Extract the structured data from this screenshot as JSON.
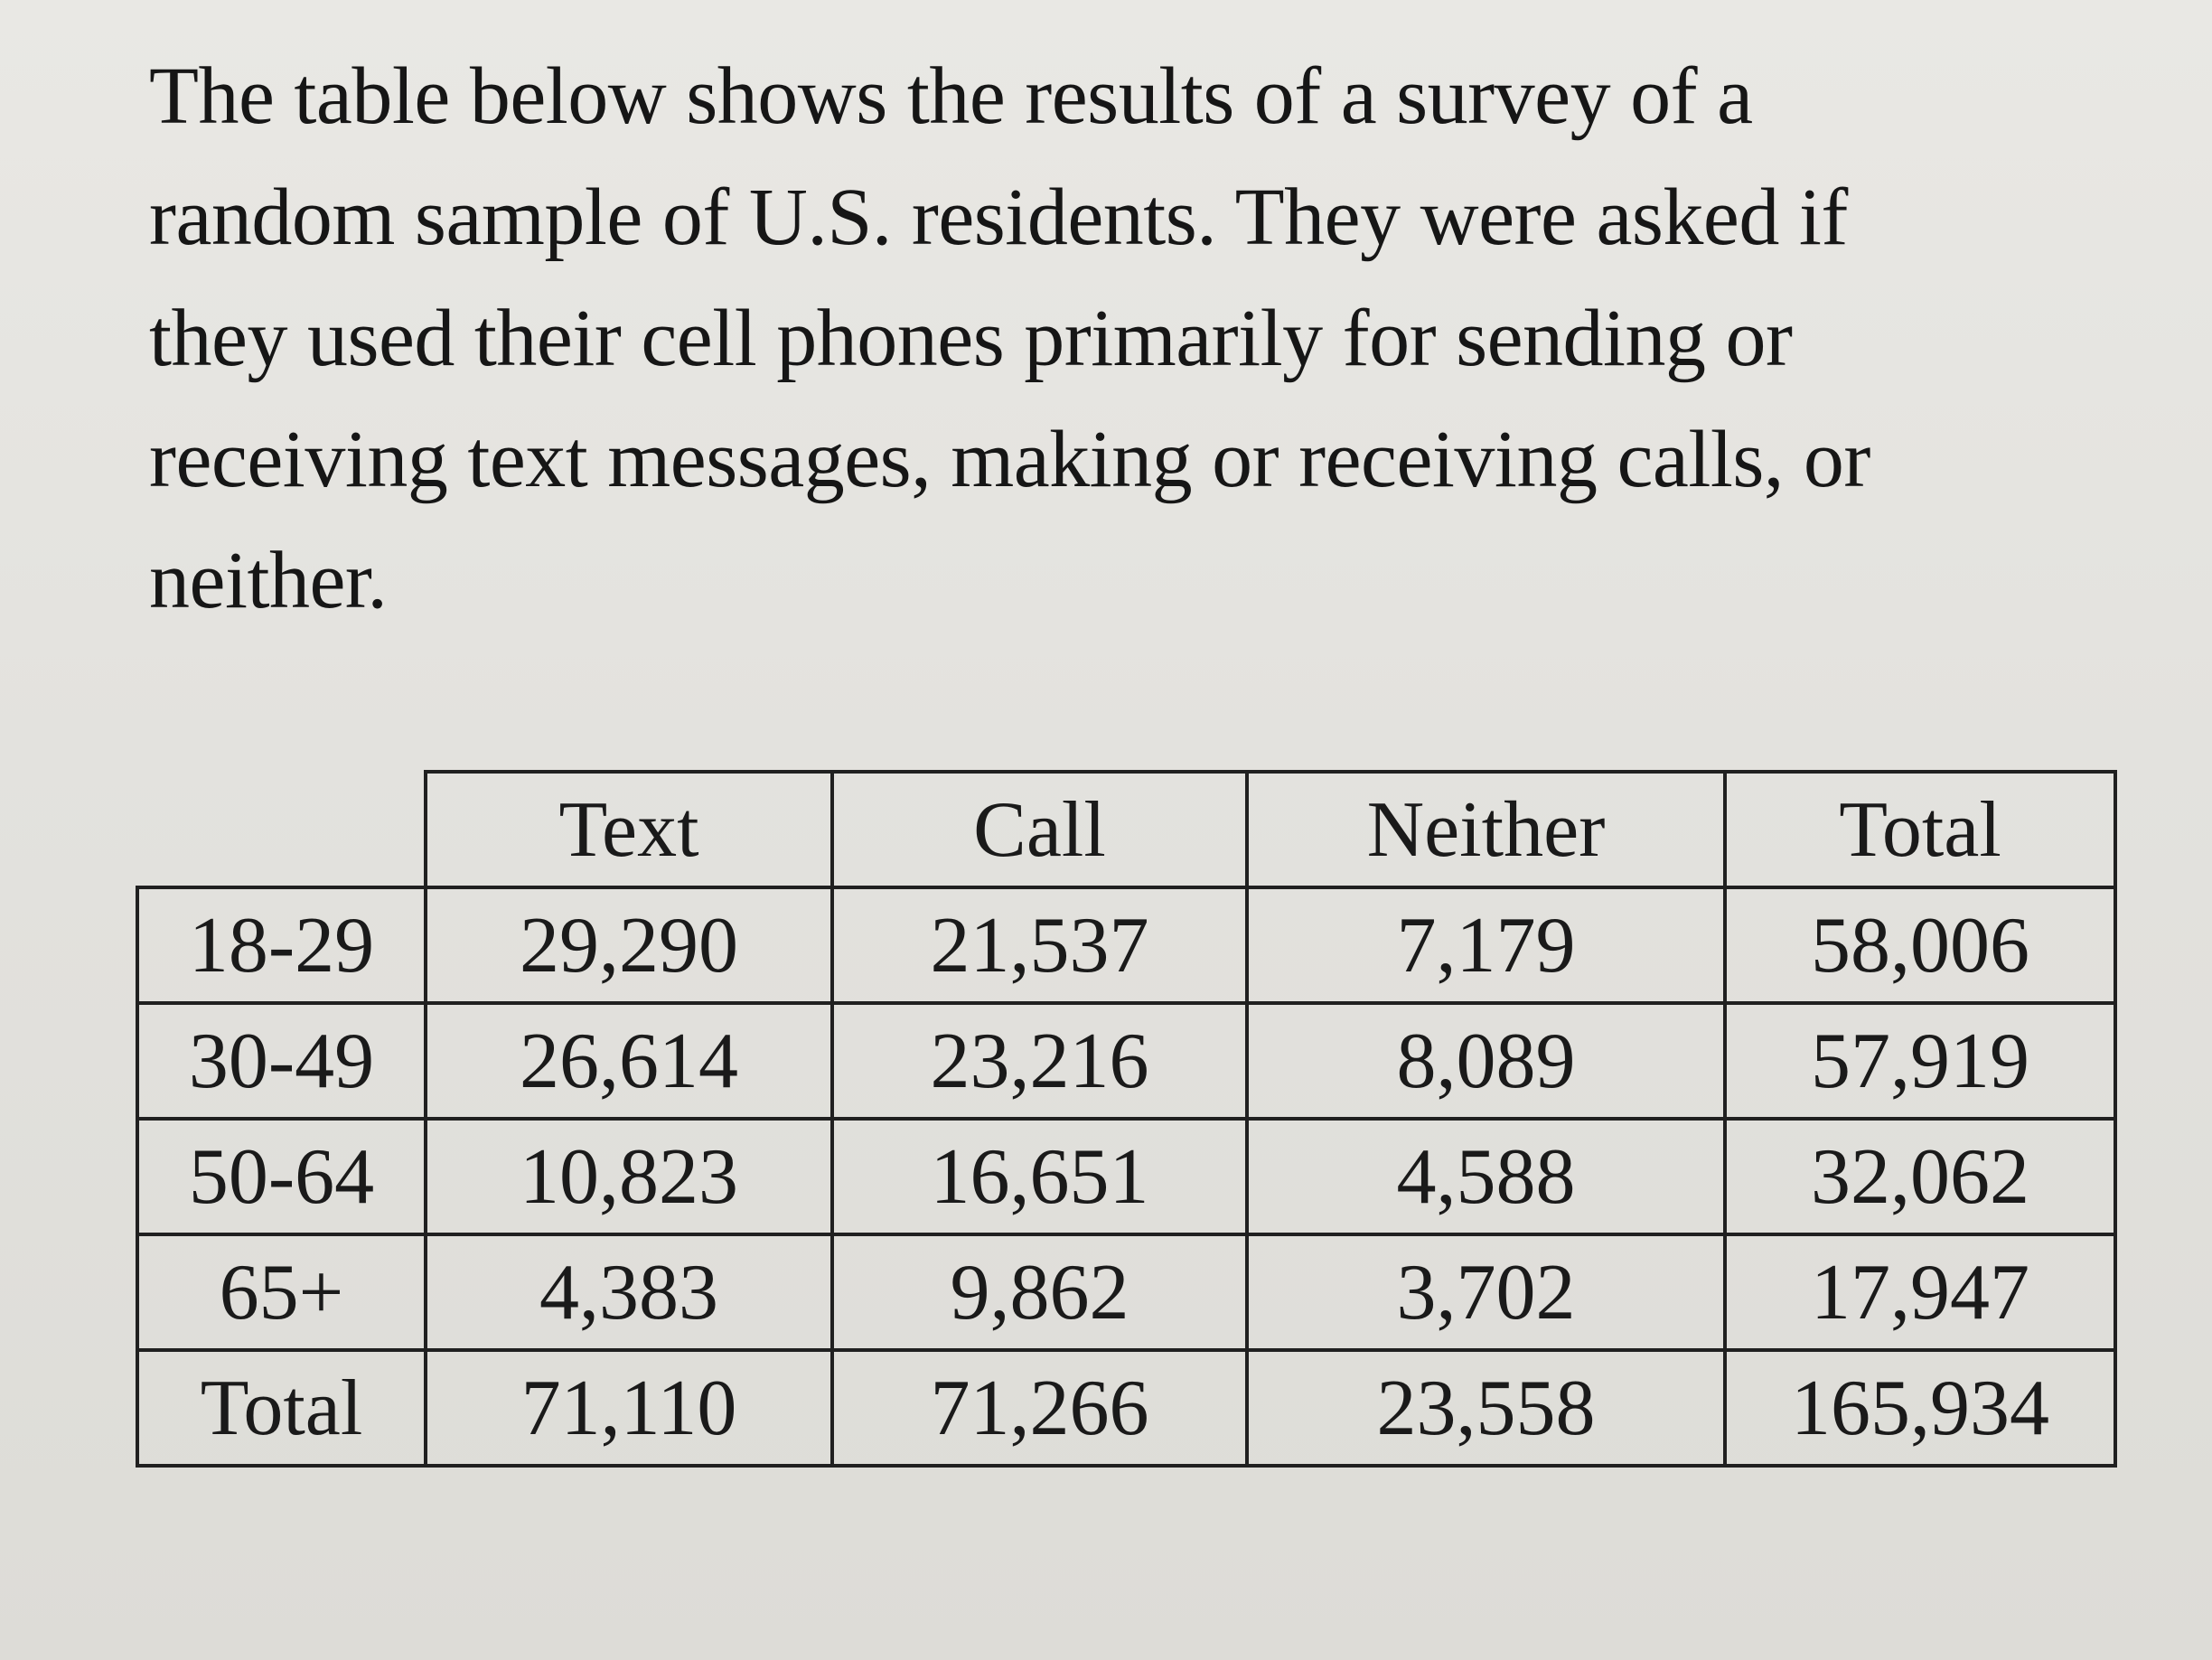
{
  "intro": {
    "lines": [
      "The table below shows the results of a survey of a",
      "random sample of U.S. residents. They were asked if",
      "they used their cell phones primarily for sending or",
      "receiving text messages, making or receiving calls, or",
      "neither."
    ]
  },
  "table": {
    "columns": [
      "Text",
      "Call",
      "Neither",
      "Total"
    ],
    "rows": [
      {
        "label": "18-29",
        "cells": [
          "29,290",
          "21,537",
          "7,179",
          "58,006"
        ]
      },
      {
        "label": "30-49",
        "cells": [
          "26,614",
          "23,216",
          "8,089",
          "57,919"
        ]
      },
      {
        "label": "50-64",
        "cells": [
          "10,823",
          "16,651",
          "4,588",
          "32,062"
        ]
      },
      {
        "label": "65+",
        "cells": [
          "4,383",
          "9,862",
          "3,702",
          "17,947"
        ]
      },
      {
        "label": "Total",
        "cells": [
          "71,110",
          "71,266",
          "23,558",
          "165,934"
        ]
      }
    ]
  }
}
